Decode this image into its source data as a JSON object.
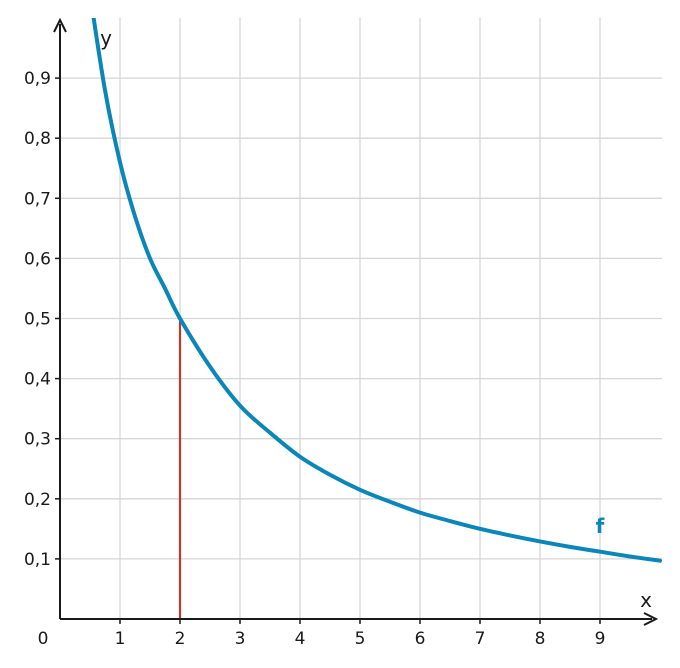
{
  "chart_data": {
    "type": "line",
    "xlabel": "x",
    "ylabel": "y",
    "origin_label": "0",
    "xlim": [
      0,
      10
    ],
    "ylim": [
      0,
      1
    ],
    "grid": true,
    "x_ticks": [
      1,
      2,
      3,
      4,
      5,
      6,
      7,
      8,
      9
    ],
    "x_tick_labels": [
      "1",
      "2",
      "3",
      "4",
      "5",
      "6",
      "7",
      "8",
      "9"
    ],
    "y_ticks": [
      0.1,
      0.2,
      0.3,
      0.4,
      0.5,
      0.6,
      0.7,
      0.8,
      0.9
    ],
    "y_tick_labels": [
      "0,1",
      "0,2",
      "0,3",
      "0,4",
      "0,5",
      "0,6",
      "0,7",
      "0,8",
      "0,9"
    ],
    "series": [
      {
        "name": "f",
        "color": "#0a86b8",
        "x": [
          0.5,
          0.75,
          1,
          1.25,
          1.5,
          1.75,
          2,
          2.5,
          3,
          3.5,
          4,
          4.5,
          5,
          5.5,
          6,
          6.5,
          7,
          7.5,
          8,
          8.5,
          9,
          9.5,
          10
        ],
        "y": [
          1.04,
          0.88,
          0.76,
          0.67,
          0.6,
          0.55,
          0.5,
          0.42,
          0.355,
          0.31,
          0.27,
          0.24,
          0.215,
          0.195,
          0.177,
          0.163,
          0.15,
          0.139,
          0.129,
          0.12,
          0.112,
          0.104,
          0.097
        ]
      }
    ],
    "vertical_marker": {
      "x": 2,
      "y": 0.5,
      "color": "#c0392b"
    }
  }
}
